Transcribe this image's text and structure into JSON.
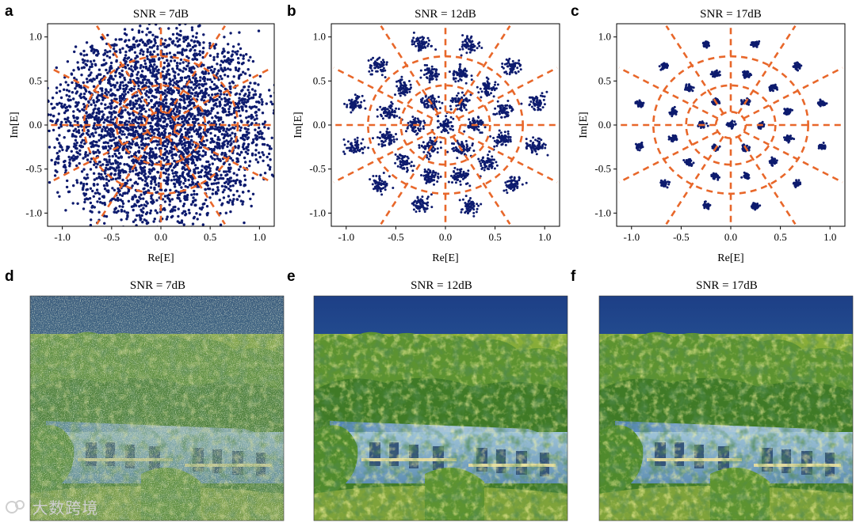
{
  "chart_data": [
    {
      "type": "scatter",
      "panel": "a",
      "title": "SNR = 7dB",
      "xlabel": "Re[E]",
      "ylabel": "Im[E]",
      "xlim": [
        -1.15,
        1.15
      ],
      "ylim": [
        -1.15,
        1.15
      ],
      "xticks": [
        "-1.0",
        "-0.5",
        "0.0",
        "0.5",
        "1.0"
      ],
      "yticks": [
        "1.0",
        "0.5",
        "0.0",
        "-0.5",
        "-1.0"
      ],
      "snr_db": 7,
      "constellation": "ring-APSK (1, 6, 12, 12 points), decision boundaries dashed"
    },
    {
      "type": "scatter",
      "panel": "b",
      "title": "SNR = 12dB",
      "xlabel": "Re[E]",
      "ylabel": "Im[E]",
      "xlim": [
        -1.15,
        1.15
      ],
      "ylim": [
        -1.15,
        1.15
      ],
      "xticks": [
        "-1.0",
        "-0.5",
        "0.0",
        "0.5",
        "1.0"
      ],
      "yticks": [
        "1.0",
        "0.5",
        "0.0",
        "-0.5",
        "-1.0"
      ],
      "snr_db": 12
    },
    {
      "type": "scatter",
      "panel": "c",
      "title": "SNR = 17dB",
      "xlabel": "Re[E]",
      "ylabel": "Im[E]",
      "xlim": [
        -1.15,
        1.15
      ],
      "ylim": [
        -1.15,
        1.15
      ],
      "xticks": [
        "-1.0",
        "-0.5",
        "0.0",
        "0.5",
        "1.0"
      ],
      "yticks": [
        "1.0",
        "0.5",
        "0.0",
        "-0.5",
        "-1.0"
      ],
      "snr_db": 17
    }
  ],
  "constellation": {
    "ring_radii": [
      0,
      0.3,
      0.6,
      0.95
    ],
    "ring_counts": [
      1,
      6,
      12,
      12
    ],
    "ring_phase_deg": [
      0,
      0,
      15,
      15
    ],
    "boundary_radii": [
      0.15,
      0.45,
      0.78
    ],
    "spoke_angles_deg": [
      0,
      30,
      60,
      90,
      120,
      150,
      180,
      210,
      240,
      270,
      300,
      330
    ],
    "noise_sigma": {
      "a": 0.16,
      "b": 0.045,
      "c": 0.018
    },
    "points_per_symbol": {
      "a": 110,
      "b": 60,
      "c": 40
    },
    "colors": {
      "points": "#0d1b6e",
      "boundary": "#e8672a"
    }
  },
  "images": [
    {
      "panel": "d",
      "title": "SNR = 7dB",
      "alt": "noisy reconstructed photo: hillside trees and building"
    },
    {
      "panel": "e",
      "title": "SNR = 12dB",
      "alt": "reconstructed photo: hillside trees and building"
    },
    {
      "panel": "f",
      "title": "SNR = 17dB",
      "alt": "reconstructed photo: hillside trees and building"
    }
  ],
  "watermark": {
    "text": "大数跨境"
  }
}
